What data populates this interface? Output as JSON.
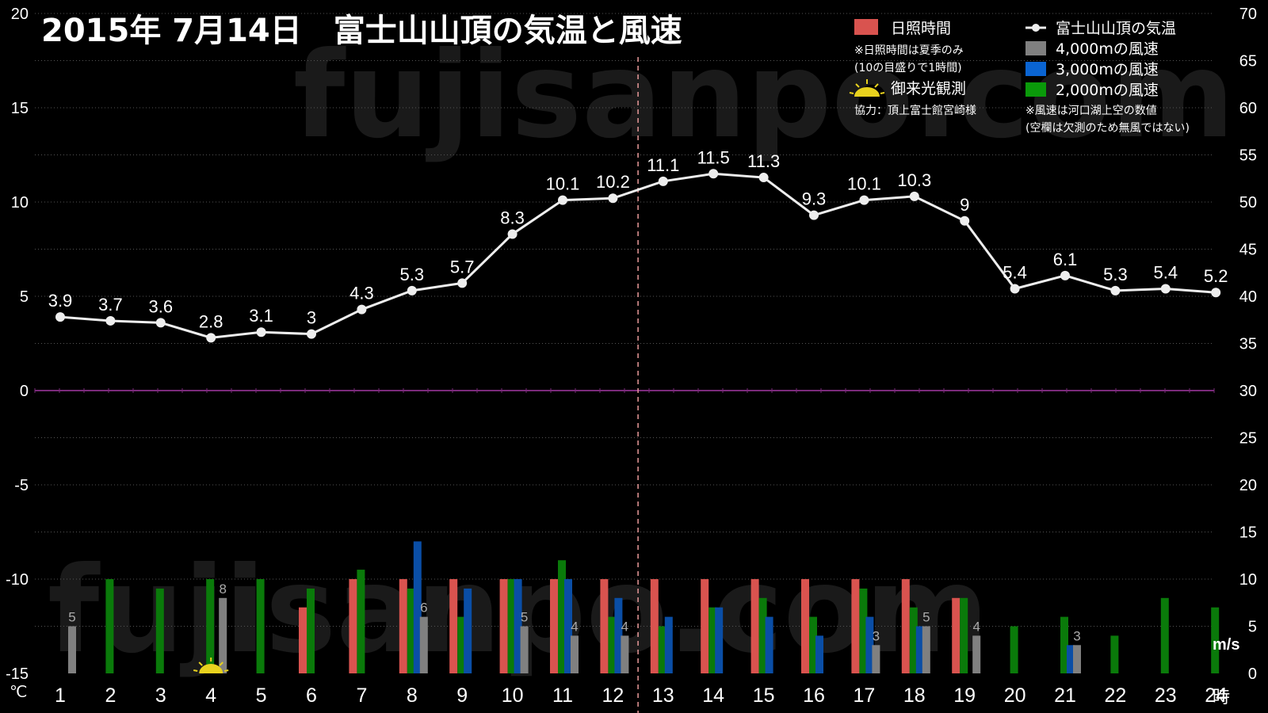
{
  "title": "2015年  7月14日　富士山山頂の気温と風速",
  "watermark": "fujisanpo.com",
  "y_left_unit": "℃",
  "y_right_unit": "m/s",
  "x_unit": "時",
  "legend": {
    "sunshine": "日照時間",
    "sunshine_note1": "※日照時間は夏季のみ",
    "sunshine_note2": "(10の目盛りで1時間)",
    "sunrise": "御来光観測",
    "credit": "協力：頂上富士館宮崎様",
    "temp": "富士山山頂の気温",
    "w4000": "4,000mの風速",
    "w3000": "3,000mの風速",
    "w2000": "2,000mの風速",
    "wind_note1": "※風速は河口湖上空の数値",
    "wind_note2": "(空欄は欠測のため無風ではない)"
  },
  "colors": {
    "sunshine": "#d9534f",
    "temp": "#eeeeee",
    "w4000": "#808080",
    "w3000": "#0a4ea6",
    "w2000": "#0a7a0a",
    "zero_line": "#7a2a7a",
    "noon_line": "#e89a9a",
    "grid": "#555555",
    "sunrise_icon": "#e8d21e"
  },
  "chart_data": {
    "type": "bar+line",
    "x": [
      "1",
      "2",
      "3",
      "4",
      "5",
      "6",
      "7",
      "8",
      "9",
      "10",
      "11",
      "12",
      "13",
      "14",
      "15",
      "16",
      "17",
      "18",
      "19",
      "20",
      "21",
      "22",
      "23",
      "24"
    ],
    "left_axis": {
      "ylim": [
        -15,
        20
      ],
      "ticks": [
        "20",
        "15",
        "10",
        "5",
        "0",
        "-5",
        "-10",
        "-15"
      ]
    },
    "right_axis": {
      "ylim": [
        0,
        70
      ],
      "ticks": [
        "70",
        "65",
        "60",
        "55",
        "50",
        "45",
        "40",
        "35",
        "30",
        "25",
        "20",
        "15",
        "10",
        "5",
        "0"
      ]
    },
    "temperature": {
      "name": "富士山山頂の気温",
      "values": [
        3.9,
        3.7,
        3.6,
        2.8,
        3.1,
        3,
        4.3,
        5.3,
        5.7,
        8.3,
        10.1,
        10.2,
        11.1,
        11.5,
        11.3,
        9.3,
        10.1,
        10.3,
        9,
        5.4,
        6.1,
        5.3,
        5.4,
        5.2
      ],
      "labels": [
        "3.9",
        "3.7",
        "3.6",
        "2.8",
        "3.1",
        "3",
        "4.3",
        "5.3",
        "5.7",
        "8.3",
        "10.1",
        "10.2",
        "11.1",
        "11.5",
        "11.3",
        "9.3",
        "10.1",
        "10.3",
        "9",
        "5.4",
        "6.1",
        "5.3",
        "5.4",
        "5.2"
      ]
    },
    "sunshine": {
      "name": "日照時間",
      "values": [
        0,
        0,
        0,
        0,
        0,
        7,
        10,
        10,
        10,
        10,
        10,
        10,
        10,
        10,
        10,
        10,
        10,
        10,
        8,
        0,
        0,
        0,
        0,
        0
      ]
    },
    "wind_4000": {
      "name": "4,000mの風速",
      "values": [
        5,
        0,
        0,
        8,
        0,
        0,
        0,
        6,
        0,
        5,
        4,
        4,
        0,
        0,
        0,
        0,
        3,
        5,
        4,
        0,
        3,
        0,
        0,
        0
      ],
      "labels": [
        "5",
        "",
        "",
        "8",
        "",
        "",
        "",
        "6",
        "",
        "5",
        "4",
        "4",
        "",
        "",
        "",
        "",
        "3",
        "5",
        "4",
        "",
        "3",
        "",
        "",
        ""
      ]
    },
    "wind_3000": {
      "name": "3,000mの風速",
      "values": [
        0,
        0,
        0,
        0,
        0,
        0,
        0,
        14,
        9,
        10,
        10,
        8,
        6,
        7,
        6,
        4,
        6,
        5,
        0,
        0,
        3,
        0,
        0,
        0
      ]
    },
    "wind_2000": {
      "name": "2,000mの風速",
      "values": [
        0,
        10,
        9,
        10,
        10,
        9,
        11,
        9,
        6,
        10,
        12,
        6,
        5,
        7,
        8,
        6,
        9,
        7,
        8,
        5,
        6,
        4,
        8,
        7
      ]
    },
    "sunrise_hour": "4",
    "noon_marker": "12"
  }
}
